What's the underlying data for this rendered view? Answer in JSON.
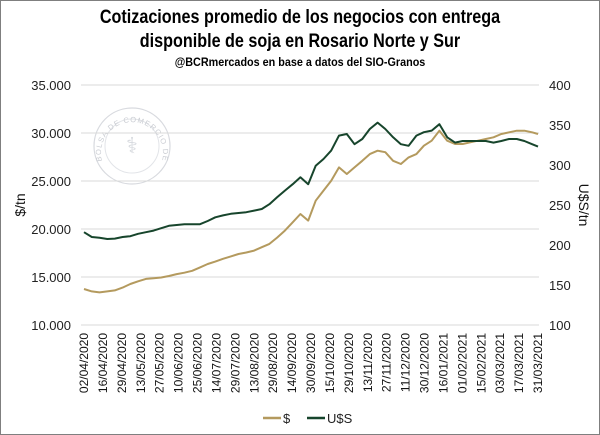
{
  "chart_data": {
    "type": "line",
    "title": [
      "Cotizaciones promedio de los negocios con entrega",
      "disponible de soja en Rosario Norte y Sur"
    ],
    "subtitle": "@BCRmercados  en base a datos del SIO-Granos",
    "ylabel": "$/tn",
    "y2label": "U$S/tn",
    "ylim": [
      10000,
      35000
    ],
    "y2lim": [
      100,
      400
    ],
    "yticks": [
      "10.000",
      "15.000",
      "20.000",
      "25.000",
      "30.000",
      "35.000"
    ],
    "y2ticks": [
      "100",
      "150",
      "200",
      "250",
      "300",
      "350",
      "400"
    ],
    "categories": [
      "02/04/2020",
      "16/04/2020",
      "29/04/2020",
      "13/05/2020",
      "27/05/2020",
      "10/06/2020",
      "25/06/2020",
      "14/07/2020",
      "29/07/2020",
      "13/08/2020",
      "29/08/2020",
      "14/09/2020",
      "30/09/2020",
      "15/10/2020",
      "29/10/2020",
      "13/11/2020",
      "27/11/2020",
      "11/12/2020",
      "30/12/2020",
      "16/01/2021",
      "01/02/2021",
      "15/02/2021",
      "03/03/2021",
      "17/03/2021",
      "31/03/2021"
    ],
    "grid": true,
    "legend": "bottom",
    "x": [
      0,
      0.41,
      0.82,
      1.23,
      1.63,
      2.04,
      2.45,
      2.86,
      3.27,
      3.68,
      4.08,
      4.49,
      4.9,
      5.31,
      5.72,
      6.13,
      6.54,
      6.94,
      7.35,
      7.76,
      8.17,
      8.58,
      8.99,
      9.4,
      9.8,
      10.21,
      10.62,
      11.03,
      11.44,
      11.85,
      12.25,
      12.66,
      13.07,
      13.48,
      13.89,
      14.3,
      14.71,
      15.11,
      15.52,
      15.93,
      16.34,
      16.75,
      17.16,
      17.57,
      17.97,
      18.38,
      18.79,
      19.2,
      19.61,
      20.02,
      20.42,
      20.83,
      21.24,
      21.65,
      22.06,
      22.47,
      22.88,
      23.28,
      23.69,
      24
    ],
    "series": [
      {
        "name": "$",
        "axis": "left",
        "color": "#b49a5e",
        "values": [
          13750,
          13500,
          13400,
          13500,
          13600,
          13900,
          14270,
          14550,
          14800,
          14880,
          14950,
          15100,
          15300,
          15450,
          15650,
          16000,
          16350,
          16600,
          16900,
          17150,
          17400,
          17550,
          17750,
          18100,
          18450,
          19100,
          19830,
          20700,
          21560,
          20870,
          22950,
          24000,
          25030,
          26420,
          25730,
          26420,
          27100,
          27800,
          28160,
          28000,
          27100,
          26770,
          27460,
          27800,
          28680,
          29200,
          30240,
          29200,
          28850,
          28850,
          29030,
          29200,
          29370,
          29550,
          29900,
          30070,
          30240,
          30240,
          30070,
          29900
        ]
      },
      {
        "name": "U$S",
        "axis": "right",
        "color": "#17452c",
        "values": [
          216,
          210,
          209,
          207.5,
          208,
          210,
          211,
          214,
          216,
          218,
          221,
          224,
          225,
          226,
          226,
          226,
          230,
          234.6,
          237,
          239,
          240,
          241,
          243,
          245,
          251,
          259.6,
          268,
          276,
          284.6,
          276,
          299,
          307.5,
          318,
          336.7,
          338.75,
          326,
          332.5,
          345,
          353,
          345,
          334.6,
          326,
          324,
          336.7,
          341,
          343,
          351,
          334.6,
          328,
          330,
          330,
          330,
          330,
          328,
          330,
          332.5,
          332.5,
          330,
          326,
          323
        ]
      }
    ]
  },
  "watermark": "BOLSA DE COMERCIO DE ROSARIO"
}
